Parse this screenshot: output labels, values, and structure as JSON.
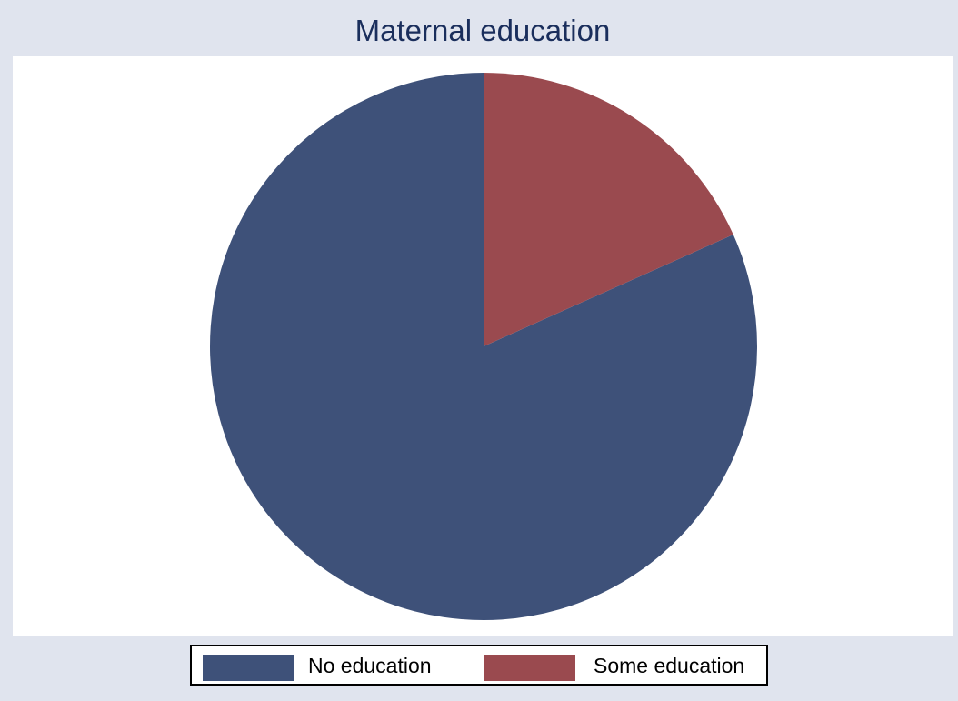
{
  "chart_data": {
    "type": "pie",
    "title": "Maternal education",
    "slices": [
      {
        "name": "No education",
        "value": 81.7,
        "color": "#3e5179"
      },
      {
        "name": "Some education",
        "value": 18.3,
        "color": "#9a4a4f"
      }
    ],
    "start_angle_deg": 90,
    "direction": "counterclockwise",
    "legend_position": "bottom",
    "legend": [
      "No education",
      "Some education"
    ]
  },
  "colors": {
    "background": "#e0e4ee",
    "plot_background": "#ffffff",
    "title": "#1a2e5c"
  }
}
